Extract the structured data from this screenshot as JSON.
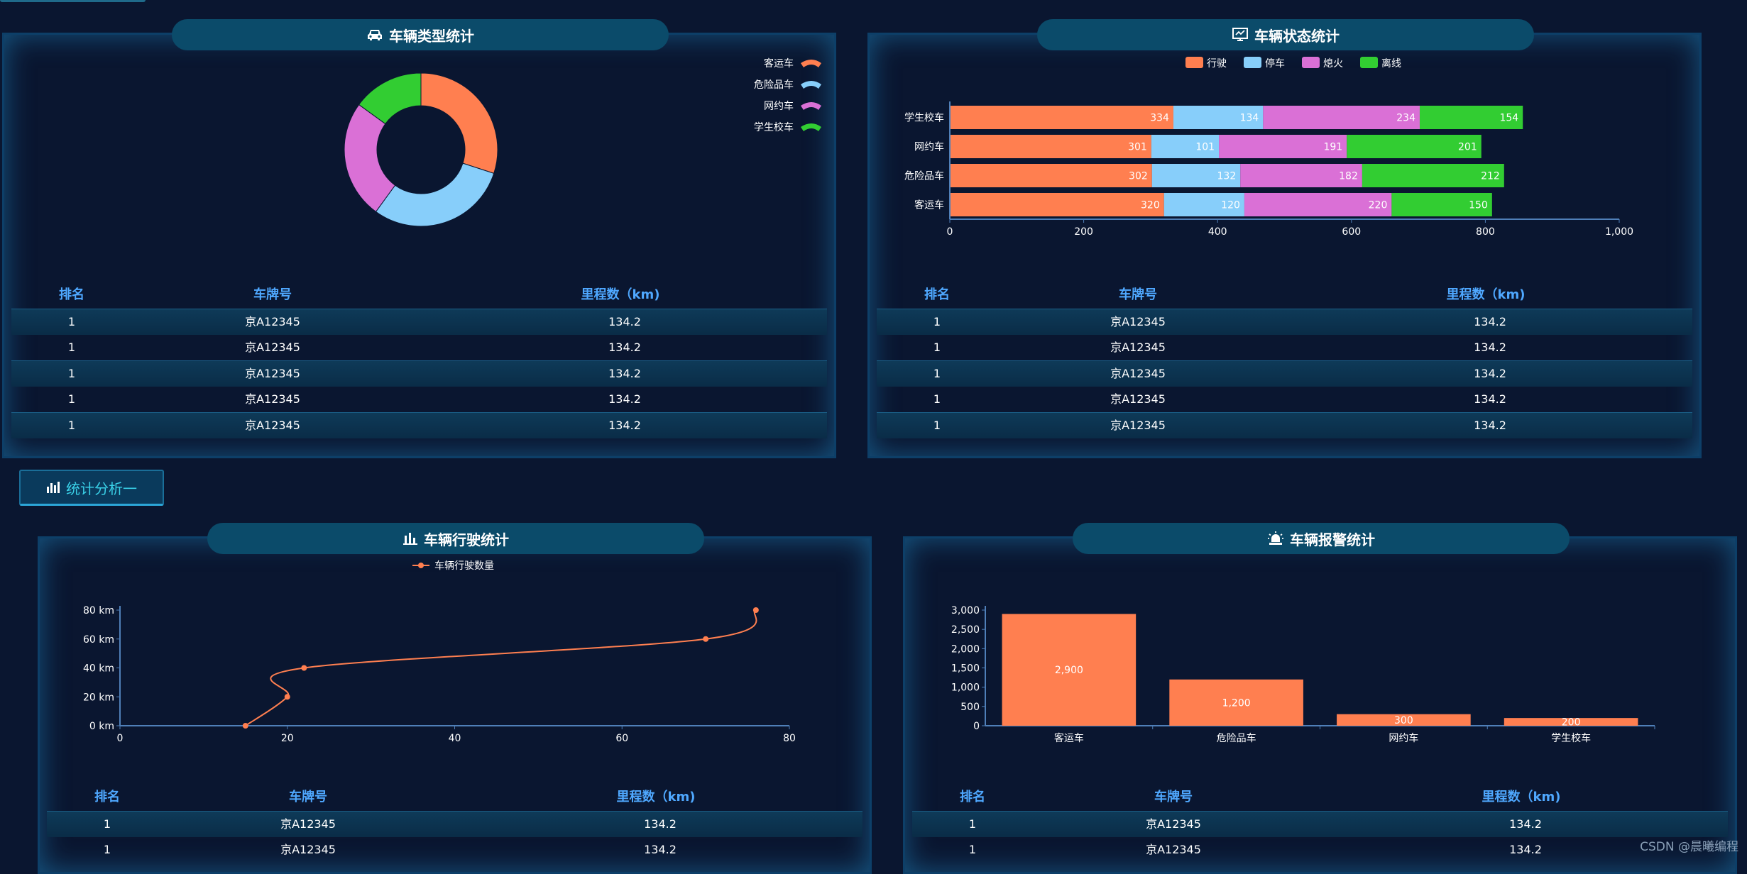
{
  "panels": {
    "vehicle_type": {
      "title": "车辆类型统计"
    },
    "vehicle_status": {
      "title": "车辆状态统计"
    },
    "vehicle_driving": {
      "title": "车辆行驶统计"
    },
    "vehicle_alarm": {
      "title": "车辆报警统计"
    }
  },
  "section_button": {
    "label": "统计分析一"
  },
  "table": {
    "headers": {
      "rank": "排名",
      "plate": "车牌号",
      "mileage": "里程数（km)"
    }
  },
  "tables": {
    "type_table": {
      "rows": [
        {
          "rank": "1",
          "plate": "京A12345",
          "mileage": "134.2"
        },
        {
          "rank": "1",
          "plate": "京A12345",
          "mileage": "134.2"
        },
        {
          "rank": "1",
          "plate": "京A12345",
          "mileage": "134.2"
        },
        {
          "rank": "1",
          "plate": "京A12345",
          "mileage": "134.2"
        },
        {
          "rank": "1",
          "plate": "京A12345",
          "mileage": "134.2"
        }
      ]
    },
    "status_table": {
      "rows": [
        {
          "rank": "1",
          "plate": "京A12345",
          "mileage": "134.2"
        },
        {
          "rank": "1",
          "plate": "京A12345",
          "mileage": "134.2"
        },
        {
          "rank": "1",
          "plate": "京A12345",
          "mileage": "134.2"
        },
        {
          "rank": "1",
          "plate": "京A12345",
          "mileage": "134.2"
        },
        {
          "rank": "1",
          "plate": "京A12345",
          "mileage": "134.2"
        }
      ]
    },
    "driving_table": {
      "rows": [
        {
          "rank": "1",
          "plate": "京A12345",
          "mileage": "134.2"
        },
        {
          "rank": "1",
          "plate": "京A12345",
          "mileage": "134.2"
        }
      ]
    },
    "alarm_table": {
      "rows": [
        {
          "rank": "1",
          "plate": "京A12345",
          "mileage": "134.2"
        },
        {
          "rank": "1",
          "plate": "京A12345",
          "mileage": "134.2"
        }
      ]
    }
  },
  "watermark": "CSDN @晨曦编程",
  "colors": {
    "orange": "#ff7f50",
    "skyblue": "#87cefa",
    "orchid": "#da70d6",
    "green": "#32cd32",
    "accent": "#4fa8ff"
  },
  "chart_data": [
    {
      "id": "type-pie",
      "type": "pie",
      "title": "车辆类型统计",
      "donut": true,
      "legend_position": "top-right",
      "slices": [
        {
          "name": "客运车",
          "value": 30,
          "color": "#ff7f50"
        },
        {
          "name": "危险品车",
          "value": 30,
          "color": "#87cefa"
        },
        {
          "name": "网约车",
          "value": 25,
          "color": "#da70d6"
        },
        {
          "name": "学生校车",
          "value": 15,
          "color": "#32cd32"
        }
      ]
    },
    {
      "id": "status-bar",
      "type": "bar",
      "orientation": "horizontal",
      "stacked": true,
      "title": "车辆状态统计",
      "legend_position": "top",
      "categories": [
        "学生校车",
        "网约车",
        "危险品车",
        "客运车"
      ],
      "series": [
        {
          "name": "行驶",
          "color": "#ff7f50",
          "values": [
            334,
            301,
            302,
            320
          ]
        },
        {
          "name": "停车",
          "color": "#87cefa",
          "values": [
            134,
            101,
            132,
            120
          ]
        },
        {
          "name": "熄火",
          "color": "#da70d6",
          "values": [
            234,
            191,
            182,
            220
          ]
        },
        {
          "name": "离线",
          "color": "#32cd32",
          "values": [
            154,
            201,
            212,
            150
          ]
        }
      ],
      "xlim": [
        0,
        1000
      ],
      "xticks": [
        "0",
        "200",
        "400",
        "600",
        "800",
        "1,000"
      ]
    },
    {
      "id": "driving-line",
      "type": "line",
      "smooth": true,
      "title": "车辆行驶统计",
      "legend_position": "top",
      "series": [
        {
          "name": "车辆行驶数量",
          "color": "#ff7f50",
          "points": [
            [
              15,
              0
            ],
            [
              20,
              20
            ],
            [
              22,
              40
            ],
            [
              70,
              60
            ],
            [
              76,
              80
            ]
          ]
        }
      ],
      "xlim": [
        0,
        80
      ],
      "ylim": [
        0,
        80
      ],
      "xticks": [
        "0",
        "20",
        "40",
        "60",
        "80"
      ],
      "yticks": [
        "0 km",
        "20 km",
        "40 km",
        "60 km",
        "80 km"
      ]
    },
    {
      "id": "alarm-bar",
      "type": "bar",
      "title": "车辆报警统计",
      "categories": [
        "客运车",
        "危险品车",
        "网约车",
        "学生校车"
      ],
      "values": [
        2900,
        1200,
        300,
        200
      ],
      "value_labels": [
        "2,900",
        "1,200",
        "300",
        "200"
      ],
      "color": "#ff7f50",
      "ylim": [
        0,
        3000
      ],
      "yticks": [
        "0",
        "500",
        "1,000",
        "1,500",
        "2,000",
        "2,500",
        "3,000"
      ]
    }
  ]
}
